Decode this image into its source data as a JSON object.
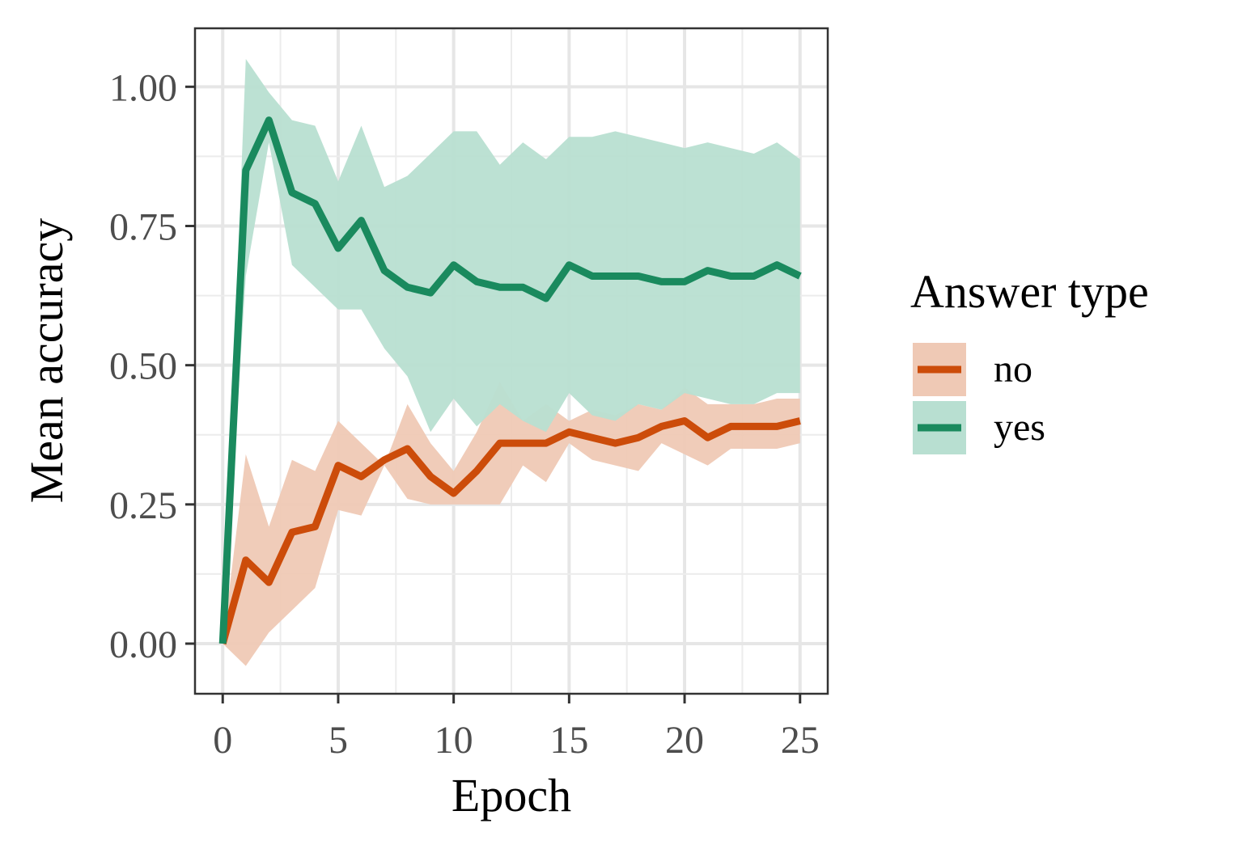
{
  "chart_data": {
    "type": "line",
    "title": "",
    "xlabel": "Epoch",
    "ylabel": "Mean accuracy",
    "xlim": [
      -1.2,
      26.2
    ],
    "ylim": [
      -0.09,
      1.105
    ],
    "x_ticks": [
      0,
      5,
      10,
      15,
      20,
      25
    ],
    "x_tick_labels": [
      "0",
      "5",
      "10",
      "15",
      "20",
      "25"
    ],
    "y_ticks": [
      0,
      0.25,
      0.5,
      0.75,
      1
    ],
    "y_tick_labels": [
      "0.00",
      "0.25",
      "0.50",
      "0.75",
      "1.00"
    ],
    "grid": true,
    "legend": {
      "title": "Answer type",
      "position": "right"
    },
    "x": [
      0,
      1,
      2,
      3,
      4,
      5,
      6,
      7,
      8,
      9,
      10,
      11,
      12,
      13,
      14,
      15,
      16,
      17,
      18,
      19,
      20,
      21,
      22,
      23,
      24,
      25
    ],
    "series": [
      {
        "name": "no",
        "color": "#cc4c0a",
        "fill": "#efc9b5",
        "mean": [
          0.0,
          0.15,
          0.11,
          0.2,
          0.21,
          0.32,
          0.3,
          0.33,
          0.35,
          0.3,
          0.27,
          0.31,
          0.36,
          0.36,
          0.36,
          0.38,
          0.37,
          0.36,
          0.37,
          0.39,
          0.4,
          0.37,
          0.39,
          0.39,
          0.39,
          0.4
        ],
        "lower": [
          0.0,
          -0.04,
          0.02,
          0.06,
          0.1,
          0.24,
          0.23,
          0.32,
          0.26,
          0.25,
          0.25,
          0.25,
          0.25,
          0.32,
          0.29,
          0.36,
          0.33,
          0.32,
          0.31,
          0.36,
          0.34,
          0.32,
          0.35,
          0.35,
          0.35,
          0.36
        ],
        "upper": [
          0.0,
          0.34,
          0.21,
          0.33,
          0.31,
          0.4,
          0.36,
          0.32,
          0.43,
          0.36,
          0.31,
          0.38,
          0.47,
          0.4,
          0.43,
          0.4,
          0.42,
          0.41,
          0.43,
          0.42,
          0.46,
          0.43,
          0.43,
          0.43,
          0.44,
          0.44
        ]
      },
      {
        "name": "yes",
        "color": "#1a8a5e",
        "fill": "#b8dfd1",
        "mean": [
          0.0,
          0.85,
          0.94,
          0.81,
          0.79,
          0.71,
          0.76,
          0.67,
          0.64,
          0.63,
          0.68,
          0.65,
          0.64,
          0.64,
          0.62,
          0.68,
          0.66,
          0.66,
          0.66,
          0.65,
          0.65,
          0.67,
          0.66,
          0.66,
          0.68,
          0.66
        ],
        "lower": [
          0.0,
          0.66,
          0.9,
          0.68,
          0.64,
          0.6,
          0.6,
          0.53,
          0.48,
          0.38,
          0.44,
          0.39,
          0.43,
          0.4,
          0.38,
          0.45,
          0.41,
          0.4,
          0.43,
          0.42,
          0.45,
          0.44,
          0.43,
          0.43,
          0.45,
          0.45
        ],
        "upper": [
          0.0,
          1.05,
          0.99,
          0.94,
          0.93,
          0.83,
          0.93,
          0.82,
          0.84,
          0.88,
          0.92,
          0.92,
          0.86,
          0.9,
          0.87,
          0.91,
          0.91,
          0.92,
          0.91,
          0.9,
          0.89,
          0.9,
          0.89,
          0.88,
          0.9,
          0.87
        ]
      }
    ]
  }
}
